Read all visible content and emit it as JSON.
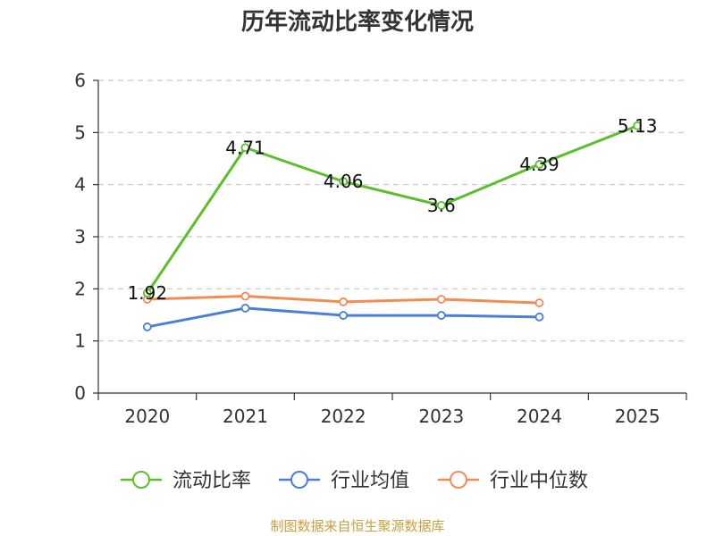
{
  "chart_data": {
    "type": "line",
    "title": "历年流动比率变化情况",
    "categories": [
      "2020",
      "2021",
      "2022",
      "2023",
      "2024",
      "2025"
    ],
    "ylim": [
      0,
      6
    ],
    "yticks": [
      0,
      1,
      2,
      3,
      4,
      5,
      6
    ],
    "grid": true,
    "legend_position": "bottom",
    "series": [
      {
        "name": "流动比率",
        "color": "#5bbf2c",
        "values": [
          1.92,
          4.71,
          4.06,
          3.6,
          4.39,
          5.13
        ],
        "labels": [
          "1.92",
          "4.71",
          "4.06",
          "3.6",
          "4.39",
          "5.13"
        ]
      },
      {
        "name": "行业均值",
        "color": "#4a7fd8",
        "values": [
          1.27,
          1.63,
          1.49,
          1.49,
          1.46,
          null
        ]
      },
      {
        "name": "行业中位数",
        "color": "#f28c55",
        "values": [
          1.8,
          1.86,
          1.75,
          1.8,
          1.73,
          null
        ]
      }
    ]
  },
  "source_note": "制图数据来自恒生聚源数据库"
}
